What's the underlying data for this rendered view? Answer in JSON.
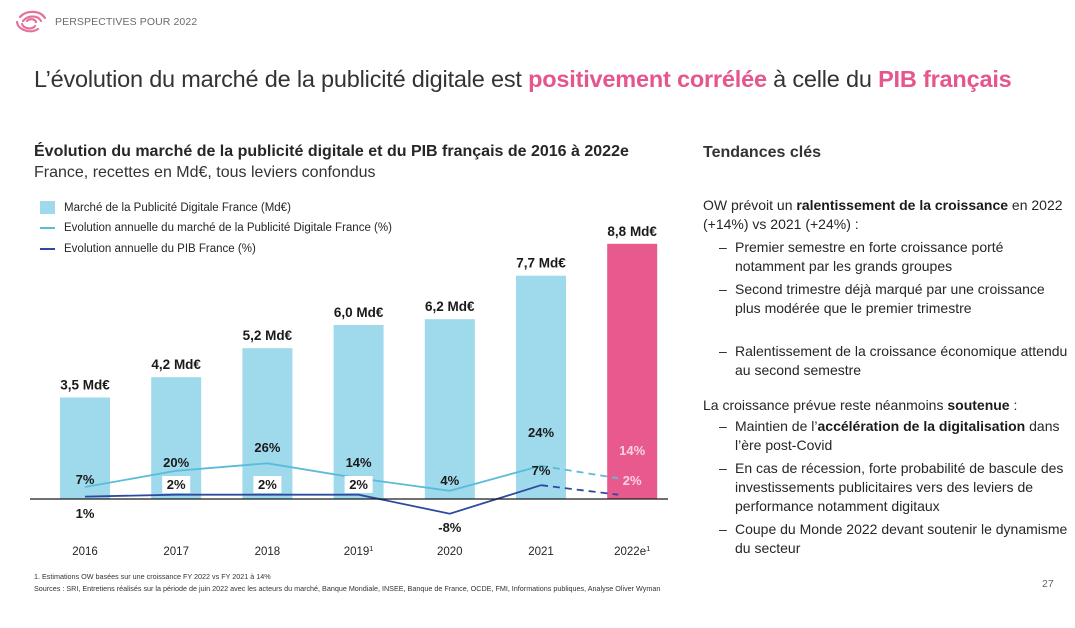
{
  "header": {
    "brand_text": "PERSPECTIVES POUR 2022",
    "logo_icon": "pink-wave-logo-icon",
    "page_number": "27"
  },
  "title": {
    "part1": "L’évolution du marché de la publicité digitale est ",
    "highlight1": "positivement corrélée",
    "part2": " à celle du ",
    "highlight2": "PIB français",
    "highlight_color": "#e5568c"
  },
  "chart_data": {
    "type": "bar",
    "title": "Évolution du marché de la publicité digitale et du PIB français de 2016 à 2022e",
    "subtitle": "France, recettes en Md€, tous leviers confondus",
    "categories": [
      "2016",
      "2017",
      "2018",
      "2019",
      "2020",
      "2021",
      "2022e"
    ],
    "category_superscripts": [
      "",
      "",
      "",
      "1",
      "",
      "",
      "1"
    ],
    "legend_placement": "top-left",
    "series": [
      {
        "name": "Marché de la Publicité Digitale France (Md€)",
        "type": "bar",
        "values": [
          3.5,
          4.2,
          5.2,
          6.0,
          6.2,
          7.7,
          8.8
        ],
        "labels": [
          "3,5 Md€",
          "4,2 Md€",
          "5,2 Md€",
          "6,0 Md€",
          "6,2 Md€",
          "7,7 Md€",
          "8,8 Md€"
        ],
        "color": "#9ed9ec",
        "highlight_color": "#e85a8d",
        "highlight_index": 6
      },
      {
        "name": "Evolution annuelle du marché de la Publicité Digitale France (%)",
        "type": "line",
        "values": [
          7,
          20,
          26,
          14,
          4,
          24,
          14
        ],
        "labels": [
          "7%",
          "20%",
          "26%",
          "14%",
          "4%",
          "24%",
          "14%"
        ],
        "color": "#5bbcd9",
        "dashed_from_index": 5
      },
      {
        "name": "Evolution annuelle du PIB France (%)",
        "type": "line",
        "values": [
          1,
          2,
          2,
          2,
          -8,
          7,
          2
        ],
        "labels": [
          "1%",
          "2%",
          "2%",
          "2%",
          "-8%",
          "7%",
          "2%"
        ],
        "color": "#2e4a9e",
        "dashed_from_index": 5
      }
    ],
    "xlabel": "",
    "ylabel": "",
    "grid": false
  },
  "trends": {
    "title": "Tendances clés",
    "para1": {
      "pre": "OW prévoit un ",
      "bold": "ralentissement de la croissance",
      "post": " en 2022 (+14%) vs 2021 (+24%) :"
    },
    "bullets1": [
      "Premier semestre en forte croissance porté notamment par les grands groupes",
      "Second trimestre déjà marqué par une croissance plus modérée que le premier trimestre",
      "Ralentissement de la croissance économique attendu au second semestre"
    ],
    "para2": {
      "pre": "La croissance prévue reste néanmoins ",
      "bold": "soutenue",
      "post": " :"
    },
    "bullet2_first": {
      "pre": "Maintien de l’",
      "bold": "accélération de la digitalisation",
      "post": " dans l’ère post-Covid"
    },
    "bullets2": [
      "En cas de récession, forte probabilité de bascule des investissements publicitaires vers des leviers de performance notamment digitaux",
      "Coupe du Monde 2022 devant soutenir le dynamisme du secteur"
    ],
    "dash": "–"
  },
  "footnotes": {
    "note1": "1. Estimations OW basées sur une croissance FY 2022 vs FY 2021 à 14%",
    "sources": "Sources : SRI, Entretiens réalisés sur la période de juin 2022 avec les acteurs du marché, Banque Mondiale, INSEE, Banque de France, OCDE, FMI, Informations publiques, Analyse Oliver Wyman"
  }
}
